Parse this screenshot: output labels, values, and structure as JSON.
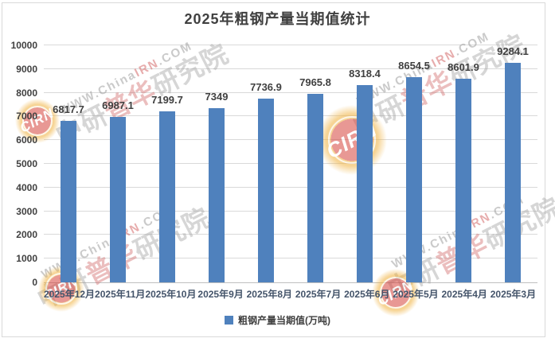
{
  "chart_data": {
    "type": "bar",
    "title": "2025年粗钢产量当期值统计",
    "categories": [
      "2025年12月",
      "2025年11月",
      "2025年10月",
      "2025年9月",
      "2025年8月",
      "2025年7月",
      "2025年6月",
      "2025年5月",
      "2025年4月",
      "2025年3月"
    ],
    "values": [
      6817.7,
      6987.1,
      7199.7,
      7349,
      7736.9,
      7965.8,
      8318.4,
      8654.5,
      8601.9,
      9284.1
    ],
    "value_labels": [
      "6817.7",
      "6987.1",
      "7199.7",
      "7349",
      "7736.9",
      "7965.8",
      "8318.4",
      "8654.5",
      "8601.9",
      "9284.1"
    ],
    "series_name": "粗钢产量当期值(万吨)",
    "xlabel": "",
    "ylabel": "",
    "ylim": [
      0,
      10000
    ],
    "ytick_step": 1000,
    "yticks": [
      0,
      1000,
      2000,
      3000,
      4000,
      5000,
      6000,
      7000,
      8000,
      9000,
      10000
    ],
    "grid": true,
    "legend_position": "bottom",
    "bar_color": "#4F81BD",
    "gridline_color": "#D9D9D9"
  },
  "watermark": {
    "site_prefix": "WWW.China",
    "site_mid": "IRN",
    "site_suffix": ".COM",
    "brand_left": "中研",
    "brand_mid": "普华",
    "brand_right": "研究院",
    "logo_text": "CIRN"
  }
}
